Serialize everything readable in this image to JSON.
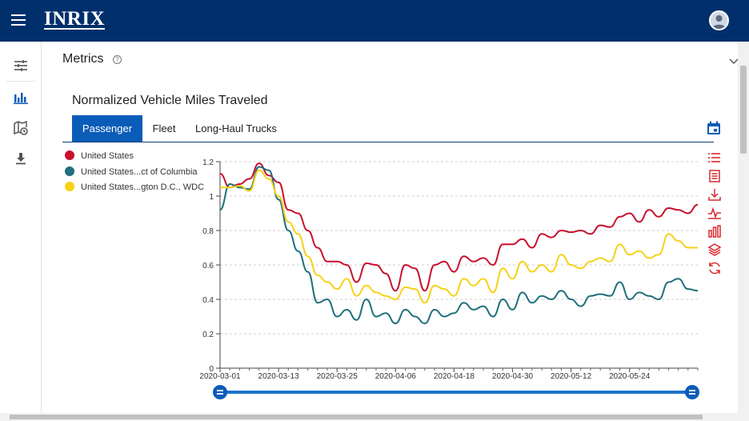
{
  "header": {
    "logo": "INRIX",
    "menu_icon": "hamburger-icon",
    "avatar_icon": "user-avatar-icon"
  },
  "sidebar": {
    "items": [
      {
        "icon": "sliders-icon",
        "active": false
      },
      {
        "icon": "bar-chart-icon",
        "active": true
      },
      {
        "icon": "map-clock-icon",
        "active": false
      },
      {
        "icon": "download-icon",
        "active": false
      }
    ]
  },
  "section": {
    "title": "Metrics",
    "help_icon": "?"
  },
  "chart_title": "Normalized Vehicle Miles Traveled",
  "tabs": [
    "Passenger",
    "Fleet",
    "Long-Haul Trucks"
  ],
  "active_tab": "Passenger",
  "legend": [
    {
      "label": "United States",
      "color": "#c8102e"
    },
    {
      "label": "United States...ct of Columbia",
      "color": "#1f6f7c"
    },
    {
      "label": "United States...gton D.C., WDC",
      "color": "#f7d117"
    }
  ],
  "accent_color": "#0a5cb8",
  "chart_data": {
    "type": "line",
    "x_ticks": [
      "2020-03-01",
      "2020-03-13",
      "2020-03-25",
      "2020-04-06",
      "2020-04-18",
      "2020-04-30",
      "2020-05-12",
      "2020-05-24"
    ],
    "y_ticks": [
      "0",
      "0.2",
      "0.4",
      "0.6",
      "0.8",
      "1",
      "1.2"
    ],
    "ylim": [
      0,
      1.2
    ],
    "x_start": "2020-03-01",
    "x_end": "2020-06-07",
    "series": [
      {
        "name": "United States",
        "color": "#c8102e",
        "x": [
          "2020-03-01",
          "2020-03-03",
          "2020-03-05",
          "2020-03-07",
          "2020-03-09",
          "2020-03-11",
          "2020-03-13",
          "2020-03-15",
          "2020-03-17",
          "2020-03-19",
          "2020-03-21",
          "2020-03-23",
          "2020-03-25",
          "2020-03-27",
          "2020-03-29",
          "2020-03-31",
          "2020-04-02",
          "2020-04-04",
          "2020-04-06",
          "2020-04-08",
          "2020-04-10",
          "2020-04-12",
          "2020-04-14",
          "2020-04-16",
          "2020-04-18",
          "2020-04-20",
          "2020-04-22",
          "2020-04-24",
          "2020-04-26",
          "2020-04-28",
          "2020-04-30",
          "2020-05-02",
          "2020-05-04",
          "2020-05-06",
          "2020-05-08",
          "2020-05-10",
          "2020-05-12",
          "2020-05-14",
          "2020-05-16",
          "2020-05-18",
          "2020-05-20",
          "2020-05-22",
          "2020-05-24",
          "2020-05-26",
          "2020-05-28",
          "2020-05-30",
          "2020-06-01",
          "2020-06-03",
          "2020-06-05",
          "2020-06-07"
        ],
        "values": [
          1.13,
          1.05,
          1.07,
          1.1,
          1.19,
          1.12,
          1.08,
          0.92,
          0.9,
          0.8,
          0.7,
          0.62,
          0.62,
          0.6,
          0.5,
          0.61,
          0.6,
          0.55,
          0.45,
          0.6,
          0.58,
          0.45,
          0.6,
          0.62,
          0.56,
          0.65,
          0.62,
          0.64,
          0.6,
          0.72,
          0.72,
          0.75,
          0.7,
          0.78,
          0.76,
          0.8,
          0.79,
          0.8,
          0.78,
          0.83,
          0.82,
          0.88,
          0.9,
          0.85,
          0.92,
          0.88,
          0.93,
          0.92,
          0.9,
          0.95
        ]
      },
      {
        "name": "United States...ct of Columbia",
        "color": "#1f6f7c",
        "x": [
          "2020-03-01",
          "2020-03-03",
          "2020-03-05",
          "2020-03-07",
          "2020-03-09",
          "2020-03-11",
          "2020-03-13",
          "2020-03-15",
          "2020-03-17",
          "2020-03-19",
          "2020-03-21",
          "2020-03-23",
          "2020-03-25",
          "2020-03-27",
          "2020-03-29",
          "2020-03-31",
          "2020-04-02",
          "2020-04-04",
          "2020-04-06",
          "2020-04-08",
          "2020-04-10",
          "2020-04-12",
          "2020-04-14",
          "2020-04-16",
          "2020-04-18",
          "2020-04-20",
          "2020-04-22",
          "2020-04-24",
          "2020-04-26",
          "2020-04-28",
          "2020-04-30",
          "2020-05-02",
          "2020-05-04",
          "2020-05-06",
          "2020-05-08",
          "2020-05-10",
          "2020-05-12",
          "2020-05-14",
          "2020-05-16",
          "2020-05-18",
          "2020-05-20",
          "2020-05-22",
          "2020-05-24",
          "2020-05-26",
          "2020-05-28",
          "2020-05-30",
          "2020-06-01",
          "2020-06-03",
          "2020-06-05",
          "2020-06-07"
        ],
        "values": [
          0.92,
          1.07,
          1.05,
          1.04,
          1.17,
          1.15,
          0.98,
          0.8,
          0.68,
          0.56,
          0.38,
          0.4,
          0.3,
          0.34,
          0.28,
          0.4,
          0.3,
          0.32,
          0.26,
          0.34,
          0.3,
          0.26,
          0.34,
          0.3,
          0.32,
          0.38,
          0.34,
          0.36,
          0.3,
          0.4,
          0.34,
          0.44,
          0.38,
          0.42,
          0.4,
          0.45,
          0.4,
          0.36,
          0.42,
          0.43,
          0.42,
          0.5,
          0.4,
          0.44,
          0.42,
          0.4,
          0.5,
          0.52,
          0.46,
          0.45
        ]
      },
      {
        "name": "United States...gton D.C., WDC",
        "color": "#f7d117",
        "x": [
          "2020-03-01",
          "2020-03-03",
          "2020-03-05",
          "2020-03-07",
          "2020-03-09",
          "2020-03-11",
          "2020-03-13",
          "2020-03-15",
          "2020-03-17",
          "2020-03-19",
          "2020-03-21",
          "2020-03-23",
          "2020-03-25",
          "2020-03-27",
          "2020-03-29",
          "2020-03-31",
          "2020-04-02",
          "2020-04-04",
          "2020-04-06",
          "2020-04-08",
          "2020-04-10",
          "2020-04-12",
          "2020-04-14",
          "2020-04-16",
          "2020-04-18",
          "2020-04-20",
          "2020-04-22",
          "2020-04-24",
          "2020-04-26",
          "2020-04-28",
          "2020-04-30",
          "2020-05-02",
          "2020-05-04",
          "2020-05-06",
          "2020-05-08",
          "2020-05-10",
          "2020-05-12",
          "2020-05-14",
          "2020-05-16",
          "2020-05-18",
          "2020-05-20",
          "2020-05-22",
          "2020-05-24",
          "2020-05-26",
          "2020-05-28",
          "2020-05-30",
          "2020-06-01",
          "2020-06-03",
          "2020-06-05",
          "2020-06-07"
        ],
        "values": [
          1.05,
          1.05,
          1.06,
          1.03,
          1.15,
          1.1,
          1.0,
          0.85,
          0.78,
          0.65,
          0.54,
          0.5,
          0.46,
          0.52,
          0.42,
          0.48,
          0.44,
          0.42,
          0.4,
          0.47,
          0.46,
          0.38,
          0.48,
          0.46,
          0.42,
          0.52,
          0.48,
          0.52,
          0.44,
          0.58,
          0.52,
          0.62,
          0.56,
          0.6,
          0.56,
          0.66,
          0.6,
          0.58,
          0.62,
          0.64,
          0.62,
          0.72,
          0.66,
          0.68,
          0.64,
          0.66,
          0.78,
          0.74,
          0.7,
          0.7
        ]
      }
    ]
  },
  "toolbar_icons": [
    "list-icon",
    "document-icon",
    "download-icon",
    "pulse-icon",
    "bar-chart-icon",
    "layers-icon",
    "refresh-icon"
  ]
}
